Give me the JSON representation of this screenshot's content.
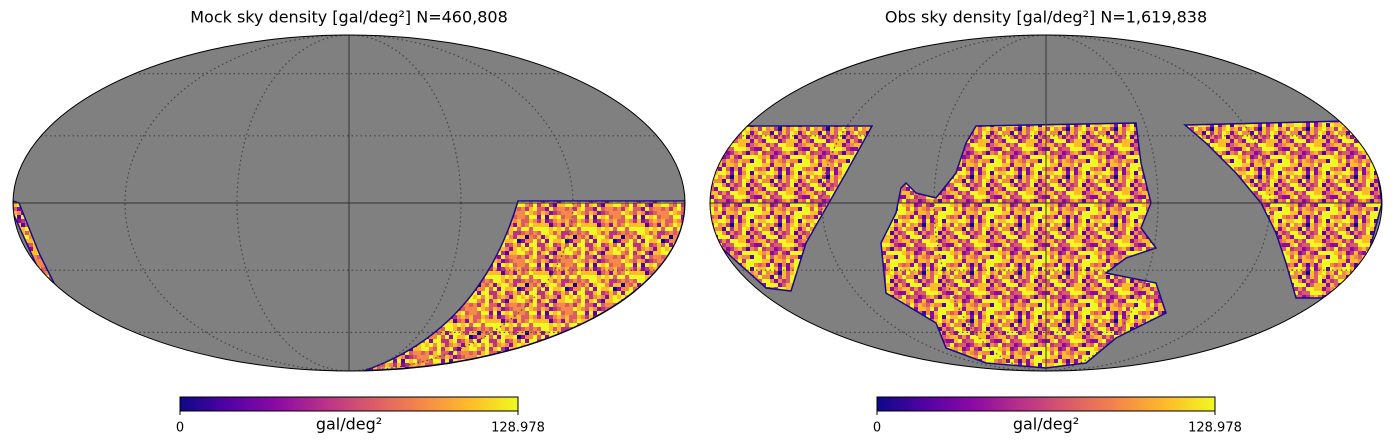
{
  "chart_data": [
    {
      "type": "mollweide",
      "title": "Mock sky density [gal/deg²]  N=460,808",
      "colorbar_label": "gal/deg²",
      "clim": [
        0,
        128.978
      ],
      "cticks": [
        0,
        128.978
      ],
      "grid": true,
      "cmap": [
        "#0d0887",
        "#5302a3",
        "#8b0aa5",
        "#b83289",
        "#db5c68",
        "#f48849",
        "#febc2a",
        "#f0f921"
      ]
    },
    {
      "type": "mollweide",
      "title": "Obs sky density [gal/deg²]  N=1,619,838",
      "colorbar_label": "gal/deg²",
      "clim": [
        0,
        128.978
      ],
      "cticks": [
        0,
        128.978
      ],
      "grid": true,
      "cmap": [
        "#0d0887",
        "#5302a3",
        "#8b0aa5",
        "#b83289",
        "#db5c68",
        "#f48849",
        "#febc2a",
        "#f0f921"
      ]
    }
  ]
}
